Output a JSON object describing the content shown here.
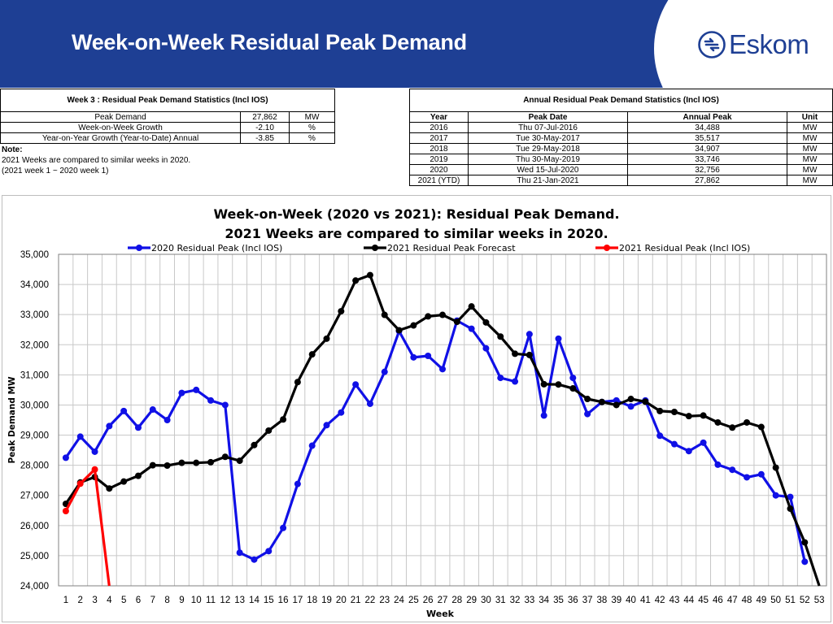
{
  "page": {
    "title": "Week-on-Week Residual Peak Demand"
  },
  "logo": {
    "text": "Eskom"
  },
  "week_table": {
    "caption": "Week 3 : Residual Peak Demand Statistics (Incl IOS)",
    "rows": [
      {
        "label": "Peak Demand",
        "value": "27,862",
        "unit": "MW"
      },
      {
        "label": "Week-on-Week Growth",
        "value": "-2.10",
        "unit": "%"
      },
      {
        "label": "Year-on-Year Growth (Year-to-Date) Annual",
        "value": "-3.85",
        "unit": "%"
      }
    ]
  },
  "note": {
    "title": "Note:",
    "line1": "2021 Weeks are compared to similar weeks in 2020.",
    "line2": "(2021 week 1 ~ 2020 week 1)"
  },
  "annual_table": {
    "caption": "Annual Residual Peak Demand Statistics (Incl IOS)",
    "headers": [
      "Year",
      "Peak Date",
      "Annual Peak",
      "Unit"
    ],
    "rows": [
      {
        "year": "2016",
        "date": "Thu 07-Jul-2016",
        "peak": "34,488",
        "unit": "MW"
      },
      {
        "year": "2017",
        "date": "Tue 30-May-2017",
        "peak": "35,517",
        "unit": "MW"
      },
      {
        "year": "2018",
        "date": "Tue 29-May-2018",
        "peak": "34,907",
        "unit": "MW"
      },
      {
        "year": "2019",
        "date": "Thu 30-May-2019",
        "peak": "33,746",
        "unit": "MW"
      },
      {
        "year": "2020",
        "date": "Wed 15-Jul-2020",
        "peak": "32,756",
        "unit": "MW"
      },
      {
        "year": "2021 (YTD)",
        "date": "Thu 21-Jan-2021",
        "peak": "27,862",
        "unit": "MW"
      }
    ]
  },
  "chart_data": {
    "type": "line",
    "title": "Week-on-Week (2020 vs 2021): Residual Peak Demand.",
    "subtitle": "2021 Weeks are compared to similar weeks in 2020.",
    "xlabel": "Week",
    "ylabel": "Peak Demand MW",
    "ylim": [
      24000,
      35000
    ],
    "y_ticks": [
      "24,000",
      "25,000",
      "26,000",
      "27,000",
      "28,000",
      "29,000",
      "30,000",
      "31,000",
      "32,000",
      "33,000",
      "34,000",
      "35,000"
    ],
    "x": [
      1,
      2,
      3,
      4,
      5,
      6,
      7,
      8,
      9,
      10,
      11,
      12,
      13,
      14,
      15,
      16,
      17,
      18,
      19,
      20,
      21,
      22,
      23,
      24,
      25,
      26,
      27,
      28,
      29,
      30,
      31,
      32,
      33,
      34,
      35,
      36,
      37,
      38,
      39,
      40,
      41,
      42,
      43,
      44,
      45,
      46,
      47,
      48,
      49,
      50,
      51,
      52,
      53
    ],
    "grid": true,
    "legend_position": "top",
    "series": [
      {
        "name": "2020 Residual Peak (Incl IOS)",
        "color": "#1010e6",
        "values": [
          28250,
          28950,
          28450,
          29300,
          29800,
          29250,
          29850,
          29500,
          30400,
          30500,
          30150,
          30000,
          25100,
          24870,
          25150,
          25920,
          27380,
          28650,
          29330,
          29750,
          30680,
          30040,
          31100,
          32450,
          31580,
          31630,
          31190,
          32800,
          32530,
          31880,
          30900,
          30780,
          32350,
          29650,
          32200,
          30900,
          29700,
          30100,
          30150,
          29950,
          30150,
          28980,
          28700,
          28470,
          28750,
          28020,
          27850,
          27600,
          27700,
          27000,
          26950,
          24800,
          null
        ]
      },
      {
        "name": "2021 Residual Peak Forecast",
        "color": "#000000",
        "values": [
          26720,
          27430,
          27610,
          27230,
          27460,
          27650,
          28000,
          27990,
          28080,
          28080,
          28100,
          28280,
          28150,
          28670,
          29150,
          29520,
          30760,
          31680,
          32200,
          33110,
          34130,
          34310,
          32990,
          32480,
          32640,
          32940,
          32990,
          32760,
          33270,
          32740,
          32270,
          31700,
          31660,
          30690,
          30680,
          30550,
          30200,
          30100,
          30000,
          30200,
          30110,
          29800,
          29770,
          29630,
          29650,
          29420,
          29250,
          29420,
          29270,
          27920,
          26560,
          25440,
          24000
        ]
      },
      {
        "name": "2021 Residual Peak (Incl IOS)",
        "color": "#ff0000",
        "values": [
          26480,
          27390,
          27862,
          24000,
          null,
          null,
          null,
          null,
          null,
          null,
          null,
          null,
          null,
          null,
          null,
          null,
          null,
          null,
          null,
          null,
          null,
          null,
          null,
          null,
          null,
          null,
          null,
          null,
          null,
          null,
          null,
          null,
          null,
          null,
          null,
          null,
          null,
          null,
          null,
          null,
          null,
          null,
          null,
          null,
          null,
          null,
          null,
          null,
          null,
          null,
          null,
          null,
          null
        ]
      }
    ]
  }
}
